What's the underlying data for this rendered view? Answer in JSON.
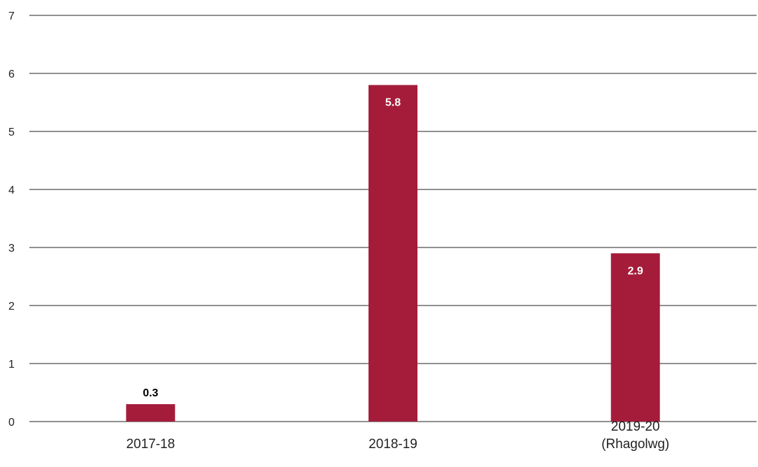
{
  "chart_data": {
    "type": "bar",
    "categories": [
      [
        "2017-18"
      ],
      [
        "2018-19"
      ],
      [
        "2019-20",
        "(Rhagolwg)"
      ]
    ],
    "values": [
      0.3,
      5.8,
      2.9
    ],
    "data_labels": [
      "0.3",
      "5.8",
      "2.9"
    ],
    "y_ticks": [
      "0",
      "1",
      "2",
      "3",
      "4",
      "5",
      "6",
      "7"
    ],
    "ylim": [
      0,
      7
    ],
    "grid": true,
    "title": "",
    "xlabel": "",
    "ylabel": "",
    "colors": {
      "bar": "#A51C3A",
      "grid": "#222222",
      "label_inside": "#ffffff",
      "label_outside": "#000000"
    }
  }
}
